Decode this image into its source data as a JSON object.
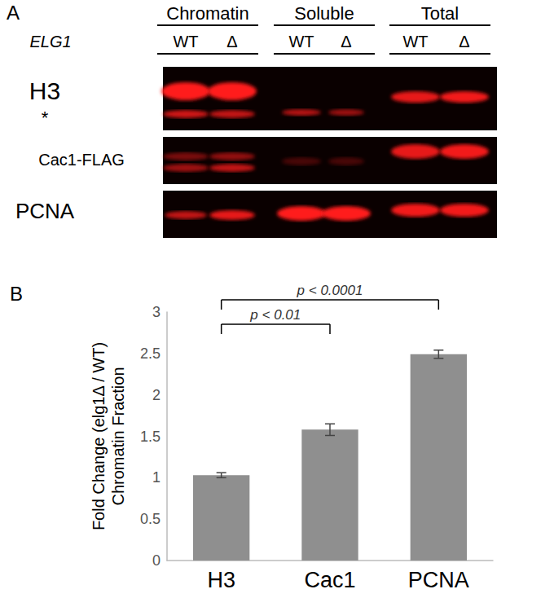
{
  "blot": {
    "panel_label": "A",
    "groups": [
      "Chromatin",
      "Soluble",
      "Total"
    ],
    "gene_label": "ELG1",
    "lanes": [
      "WT",
      "Δ"
    ],
    "rows": [
      "H3",
      "Cac1-FLAG",
      "PCNA"
    ],
    "band_note": "*"
  },
  "chart_data": {
    "type": "bar",
    "panel_label": "B",
    "categories": [
      "H3",
      "Cac1",
      "PCNA"
    ],
    "values": [
      1.03,
      1.58,
      2.49
    ],
    "errors": [
      0.03,
      0.07,
      0.05
    ],
    "color": "#8f8f8f",
    "ylabel": "Fold Change (elg1Δ / WT)\nChromatin Fraction",
    "ylim": [
      0,
      3
    ],
    "yticks": [
      0,
      0.5,
      1,
      1.5,
      2,
      2.5,
      3
    ],
    "grid": false,
    "annotations": [
      {
        "from": "H3",
        "to": "PCNA",
        "text": "p < 0.0001"
      },
      {
        "from": "H3",
        "to": "Cac1",
        "text": "p < 0.01"
      }
    ]
  }
}
